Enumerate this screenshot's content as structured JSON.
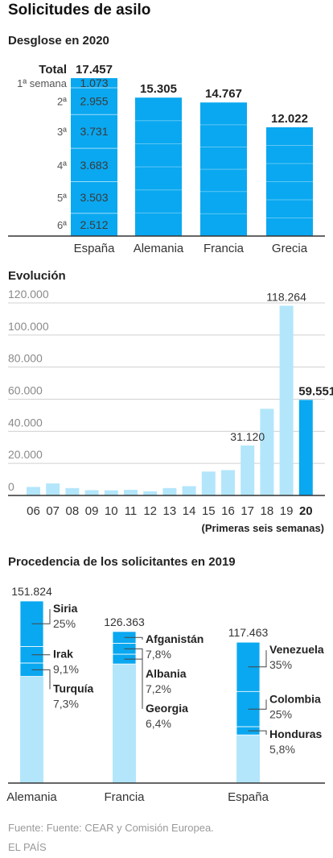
{
  "title": "Solicitudes de asilo",
  "source": "Fuente: Fuente: CEAR y Comisión Europea.",
  "publisher": "EL PAÍS",
  "colors": {
    "blue": "#0aa8f0",
    "light_blue": "#b3e6fb",
    "axis": "#333333",
    "grid": "#d0d0d0"
  },
  "chart_data": [
    {
      "type": "bar",
      "title": "Desglose en 2020",
      "categories": [
        "España",
        "Alemania",
        "Francia",
        "Grecia"
      ],
      "values": [
        17457,
        15305,
        14767,
        12022
      ],
      "value_labels": [
        "17.457",
        "15.305",
        "14.767",
        "12.022"
      ],
      "total_label": "Total",
      "stacked_spain": {
        "labels": [
          "1ª semana",
          "2ª",
          "3ª",
          "4ª",
          "5ª",
          "6ª"
        ],
        "values": [
          1073,
          2955,
          3731,
          3683,
          3503,
          2512
        ],
        "value_labels": [
          "1.073",
          "2.955",
          "3.731",
          "3.683",
          "3.503",
          "2.512"
        ]
      },
      "ylim": [
        0,
        17457
      ]
    },
    {
      "type": "bar",
      "title": "Evolución",
      "categories": [
        "06",
        "07",
        "08",
        "09",
        "10",
        "11",
        "12",
        "13",
        "14",
        "15",
        "16",
        "17",
        "18",
        "19",
        "20"
      ],
      "values": [
        5300,
        7500,
        4600,
        3300,
        3200,
        3500,
        2600,
        4600,
        5800,
        14900,
        15800,
        31120,
        54000,
        118264,
        59551
      ],
      "labeled_values": [
        {
          "index": 11,
          "label": "31.120"
        },
        {
          "index": 13,
          "label": "118.264"
        },
        {
          "index": 14,
          "label": "59.551",
          "bold": true
        }
      ],
      "yticks": [
        0,
        20000,
        40000,
        60000,
        80000,
        100000,
        120000
      ],
      "ytick_labels": [
        "0",
        "20.000",
        "40.000",
        "60.000",
        "80.000",
        "100.000",
        "120.000"
      ],
      "ylim": [
        0,
        125000
      ],
      "highlight_index": 14,
      "note": "(Primeras seis semanas)",
      "grid": true
    },
    {
      "type": "bar",
      "title": "Procedencia de los solicitantes en 2019",
      "categories": [
        "Alemania",
        "Francia",
        "España"
      ],
      "values": [
        151824,
        126363,
        117463
      ],
      "value_labels": [
        "151.824",
        "126.363",
        "117.463"
      ],
      "segments": [
        [
          {
            "name": "Siria",
            "pct": 25,
            "label": "25%"
          },
          {
            "name": "Irak",
            "pct": 9.1,
            "label": "9,1%"
          },
          {
            "name": "Turquía",
            "pct": 7.3,
            "label": "7,3%"
          }
        ],
        [
          {
            "name": "Afganistán",
            "pct": 7.8,
            "label": "7,8%"
          },
          {
            "name": "Albania",
            "pct": 7.2,
            "label": "7,2%"
          },
          {
            "name": "Georgia",
            "pct": 6.4,
            "label": "6,4%"
          }
        ],
        [
          {
            "name": "Venezuela",
            "pct": 35,
            "label": "35%"
          },
          {
            "name": "Colombia",
            "pct": 25,
            "label": "25%"
          },
          {
            "name": "Honduras",
            "pct": 5.8,
            "label": "5,8%"
          }
        ]
      ]
    }
  ]
}
